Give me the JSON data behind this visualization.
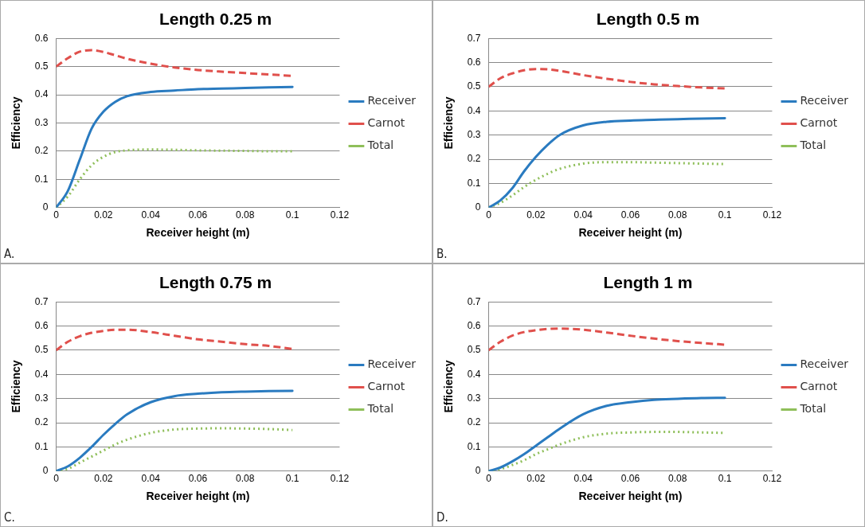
{
  "chart_data": [
    {
      "type": "line",
      "title": "Length 0.25 m",
      "xlabel": "Receiver height (m)",
      "ylabel": "Efficiency",
      "annotations": [
        "A."
      ],
      "x": [
        0,
        0.005,
        0.01,
        0.015,
        0.02,
        0.025,
        0.03,
        0.04,
        0.05,
        0.06,
        0.07,
        0.08,
        0.09,
        0.1
      ],
      "series": [
        {
          "name": "Receiver",
          "color": "#2a7bc0",
          "line_style": "solid",
          "values": [
            0,
            0.06,
            0.17,
            0.28,
            0.34,
            0.375,
            0.395,
            0.41,
            0.415,
            0.42,
            0.422,
            0.424,
            0.426,
            0.428
          ]
        },
        {
          "name": "Carnot",
          "color": "#e0504c",
          "line_style": "dashed",
          "values": [
            0.5,
            0.53,
            0.553,
            0.558,
            0.552,
            0.54,
            0.528,
            0.51,
            0.497,
            0.488,
            0.482,
            0.477,
            0.472,
            0.467
          ]
        },
        {
          "name": "Total",
          "color": "#8fbf5a",
          "line_style": "dotted",
          "values": [
            0,
            0.04,
            0.1,
            0.15,
            0.18,
            0.197,
            0.203,
            0.206,
            0.205,
            0.203,
            0.202,
            0.201,
            0.2,
            0.2
          ]
        }
      ],
      "xlim": [
        0,
        0.12
      ],
      "xticks": [
        0,
        0.02,
        0.04,
        0.06,
        0.08,
        0.1,
        0.12
      ],
      "ylim": [
        0,
        0.6
      ],
      "yticks": [
        0,
        0.1,
        0.2,
        0.3,
        0.4,
        0.5,
        0.6
      ],
      "grid": "y",
      "legend": "right",
      "marker": "none"
    },
    {
      "type": "line",
      "title": "Length 0.5 m",
      "xlabel": "Receiver height (m)",
      "ylabel": "Efficiency",
      "annotations": [
        "B."
      ],
      "x": [
        0,
        0.005,
        0.01,
        0.015,
        0.02,
        0.025,
        0.03,
        0.04,
        0.05,
        0.06,
        0.07,
        0.08,
        0.09,
        0.1
      ],
      "series": [
        {
          "name": "Receiver",
          "color": "#2a7bc0",
          "line_style": "solid",
          "values": [
            0,
            0.03,
            0.08,
            0.15,
            0.21,
            0.26,
            0.3,
            0.34,
            0.355,
            0.36,
            0.363,
            0.366,
            0.368,
            0.37
          ]
        },
        {
          "name": "Carnot",
          "color": "#e0504c",
          "line_style": "dashed",
          "values": [
            0.5,
            0.535,
            0.555,
            0.568,
            0.573,
            0.572,
            0.566,
            0.548,
            0.533,
            0.52,
            0.51,
            0.503,
            0.497,
            0.493
          ]
        },
        {
          "name": "Total",
          "color": "#8fbf5a",
          "line_style": "dotted",
          "values": [
            0,
            0.02,
            0.05,
            0.085,
            0.115,
            0.14,
            0.16,
            0.182,
            0.188,
            0.188,
            0.186,
            0.184,
            0.182,
            0.18
          ]
        }
      ],
      "xlim": [
        0,
        0.12
      ],
      "xticks": [
        0,
        0.02,
        0.04,
        0.06,
        0.08,
        0.1,
        0.12
      ],
      "ylim": [
        0,
        0.7
      ],
      "yticks": [
        0,
        0.1,
        0.2,
        0.3,
        0.4,
        0.5,
        0.6,
        0.7
      ],
      "grid": "y",
      "legend": "right",
      "marker": "none"
    },
    {
      "type": "line",
      "title": "Length 0.75 m",
      "xlabel": "Receiver height (m)",
      "ylabel": "Efficiency",
      "annotations": [
        "C."
      ],
      "x": [
        0,
        0.005,
        0.01,
        0.015,
        0.02,
        0.025,
        0.03,
        0.04,
        0.05,
        0.06,
        0.07,
        0.08,
        0.09,
        0.1
      ],
      "series": [
        {
          "name": "Receiver",
          "color": "#2a7bc0",
          "line_style": "solid",
          "values": [
            0,
            0.02,
            0.055,
            0.1,
            0.15,
            0.195,
            0.235,
            0.285,
            0.31,
            0.32,
            0.326,
            0.329,
            0.331,
            0.332
          ]
        },
        {
          "name": "Carnot",
          "color": "#e0504c",
          "line_style": "dashed",
          "values": [
            0.5,
            0.535,
            0.558,
            0.572,
            0.58,
            0.585,
            0.585,
            0.575,
            0.56,
            0.545,
            0.535,
            0.525,
            0.518,
            0.505
          ]
        },
        {
          "name": "Total",
          "color": "#8fbf5a",
          "line_style": "dotted",
          "values": [
            0,
            0.01,
            0.035,
            0.06,
            0.085,
            0.11,
            0.13,
            0.158,
            0.172,
            0.176,
            0.177,
            0.176,
            0.174,
            0.17
          ]
        }
      ],
      "xlim": [
        0,
        0.12
      ],
      "xticks": [
        0,
        0.02,
        0.04,
        0.06,
        0.08,
        0.1,
        0.12
      ],
      "ylim": [
        0,
        0.7
      ],
      "yticks": [
        0,
        0.1,
        0.2,
        0.3,
        0.4,
        0.5,
        0.6,
        0.7
      ],
      "grid": "y",
      "legend": "right",
      "marker": "none"
    },
    {
      "type": "line",
      "title": "Length 1 m",
      "xlabel": "Receiver height (m)",
      "ylabel": "Efficiency",
      "annotations": [
        "D."
      ],
      "x": [
        0,
        0.005,
        0.01,
        0.015,
        0.02,
        0.025,
        0.03,
        0.04,
        0.05,
        0.06,
        0.07,
        0.08,
        0.09,
        0.1
      ],
      "series": [
        {
          "name": "Receiver",
          "color": "#2a7bc0",
          "line_style": "solid",
          "values": [
            0,
            0.015,
            0.04,
            0.07,
            0.105,
            0.14,
            0.175,
            0.235,
            0.27,
            0.285,
            0.295,
            0.299,
            0.302,
            0.303
          ]
        },
        {
          "name": "Carnot",
          "color": "#e0504c",
          "line_style": "dashed",
          "values": [
            0.5,
            0.535,
            0.56,
            0.575,
            0.583,
            0.588,
            0.59,
            0.585,
            0.573,
            0.56,
            0.548,
            0.538,
            0.53,
            0.523
          ]
        },
        {
          "name": "Total",
          "color": "#8fbf5a",
          "line_style": "dotted",
          "values": [
            0,
            0.008,
            0.025,
            0.045,
            0.07,
            0.09,
            0.11,
            0.14,
            0.155,
            0.16,
            0.162,
            0.162,
            0.16,
            0.158
          ]
        }
      ],
      "xlim": [
        0,
        0.12
      ],
      "xticks": [
        0,
        0.02,
        0.04,
        0.06,
        0.08,
        0.1,
        0.12
      ],
      "ylim": [
        0,
        0.7
      ],
      "yticks": [
        0,
        0.1,
        0.2,
        0.3,
        0.4,
        0.5,
        0.6,
        0.7
      ],
      "grid": "y",
      "legend": "right",
      "marker": "none"
    }
  ]
}
